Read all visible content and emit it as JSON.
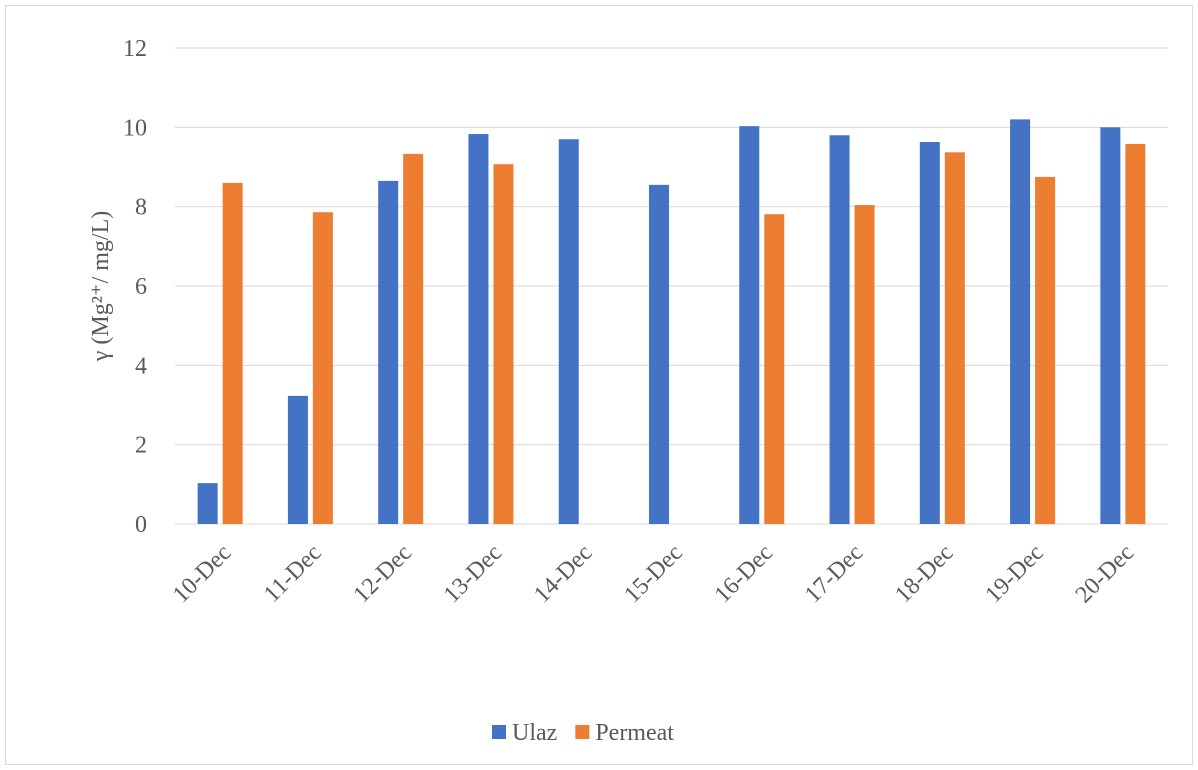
{
  "chart_data": {
    "type": "bar",
    "y_label": "γ (Mg²⁺/ mg/L)",
    "categories": [
      "10-Dec",
      "11-Dec",
      "12-Dec",
      "13-Dec",
      "14-Dec",
      "15-Dec",
      "16-Dec",
      "17-Dec",
      "18-Dec",
      "19-Dec",
      "20-Dec"
    ],
    "series": [
      {
        "name": "Ulaz",
        "color": "#4472c4",
        "values": [
          1.03,
          3.23,
          8.65,
          9.83,
          9.7,
          8.55,
          10.03,
          9.8,
          9.63,
          10.2,
          10.0
        ]
      },
      {
        "name": "Permeat",
        "color": "#ed7d31",
        "values": [
          8.6,
          7.86,
          9.33,
          9.07,
          null,
          null,
          7.81,
          8.04,
          9.37,
          8.75,
          9.58
        ]
      }
    ],
    "ylim": [
      0,
      12
    ],
    "yticks": [
      0,
      2,
      4,
      6,
      8,
      10,
      12
    ],
    "grid": true,
    "legend": "bottom"
  }
}
